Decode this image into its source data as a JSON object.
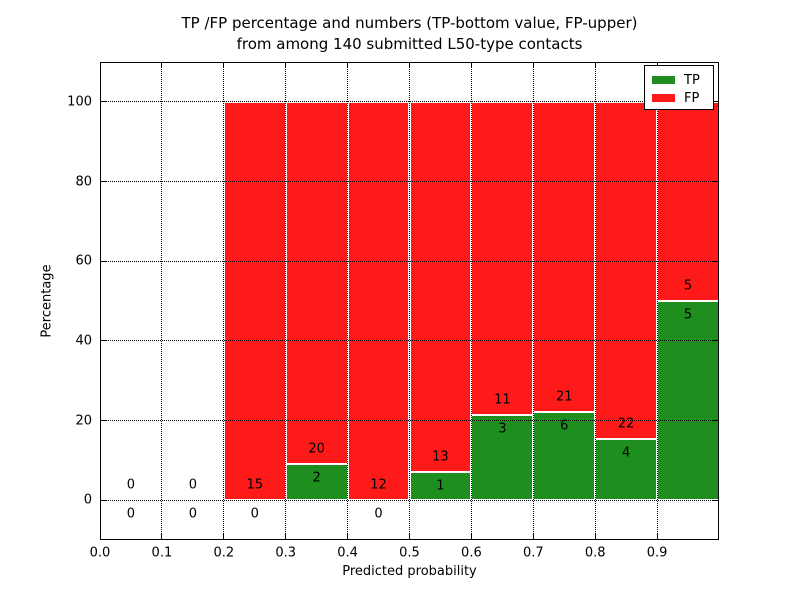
{
  "figure": {
    "title_line1": "TP /FP percentage and numbers (TP-bottom value, FP-upper)",
    "title_line2": "from among 140 submitted L50-type contacts"
  },
  "chart_data": {
    "type": "bar",
    "stacked": true,
    "normalized": "each bin stacked to 100 percent",
    "title": "TP /FP percentage and numbers (TP-bottom value, FP-upper) from among 140 submitted L50-type contacts",
    "xlabel": "Predicted probability",
    "ylabel": "Percentage",
    "total_contacts": 140,
    "bin_edges": [
      0.0,
      0.1,
      0.2,
      0.3,
      0.4,
      0.5,
      0.6,
      0.7,
      0.8,
      0.9,
      1.0
    ],
    "series": [
      {
        "name": "TP",
        "color": "#1e8f1e",
        "counts": [
          0,
          0,
          0,
          2,
          0,
          1,
          3,
          6,
          4,
          5
        ]
      },
      {
        "name": "FP",
        "color": "#ff1a1a",
        "counts": [
          0,
          0,
          15,
          20,
          12,
          13,
          11,
          21,
          22,
          5
        ]
      }
    ],
    "tp_percent_per_bin": [
      0,
      0,
      0,
      9.09,
      0,
      7.14,
      21.43,
      22.22,
      15.38,
      50.0
    ],
    "xlim": [
      0.0,
      1.0
    ],
    "ylim": [
      -10,
      110
    ],
    "xticks": [
      "0.0",
      "0.1",
      "0.2",
      "0.3",
      "0.4",
      "0.5",
      "0.6",
      "0.7",
      "0.8",
      "0.9"
    ],
    "yticks": [
      "0",
      "20",
      "40",
      "60",
      "80",
      "100"
    ],
    "grid": "dotted",
    "legend": {
      "position": "upper right",
      "entries": [
        {
          "label": "TP",
          "color": "#1e8f1e"
        },
        {
          "label": "FP",
          "color": "#ff1a1a"
        }
      ]
    }
  }
}
